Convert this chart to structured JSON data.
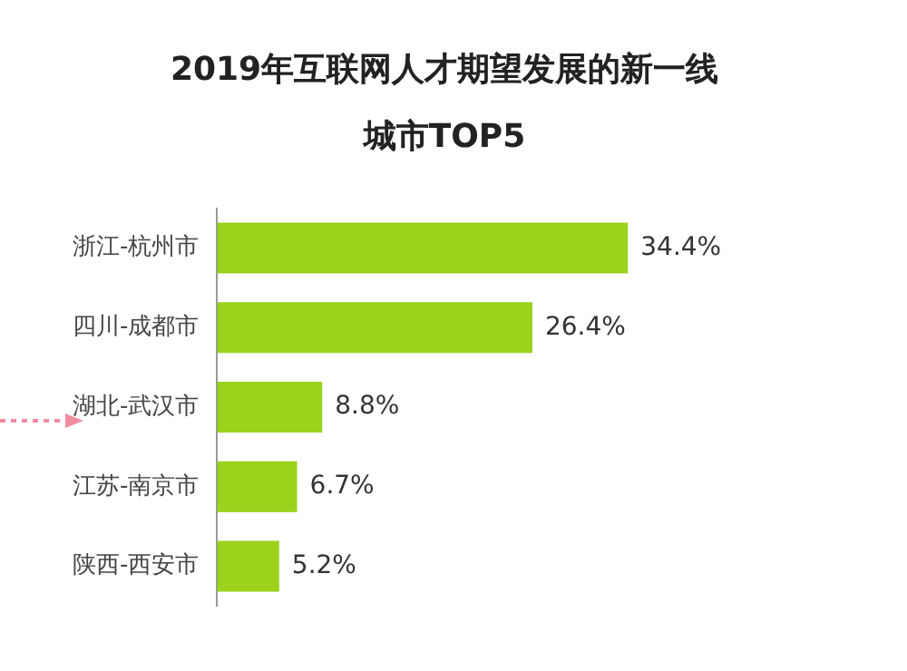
{
  "chart_data": {
    "type": "bar",
    "orientation": "horizontal",
    "title": "2019年互联网人才期望发展的新一线城市TOP5",
    "categories": [
      "浙江-杭州市",
      "四川-成都市",
      "湖北-武汉市",
      "江苏-南京市",
      "陕西-西安市"
    ],
    "values": [
      34.4,
      26.4,
      8.8,
      6.7,
      5.2
    ],
    "value_labels": [
      "34.4%",
      "26.4%",
      "8.8%",
      "6.7%",
      "5.2%"
    ],
    "color": "#9ad21c",
    "legend": false
  }
}
